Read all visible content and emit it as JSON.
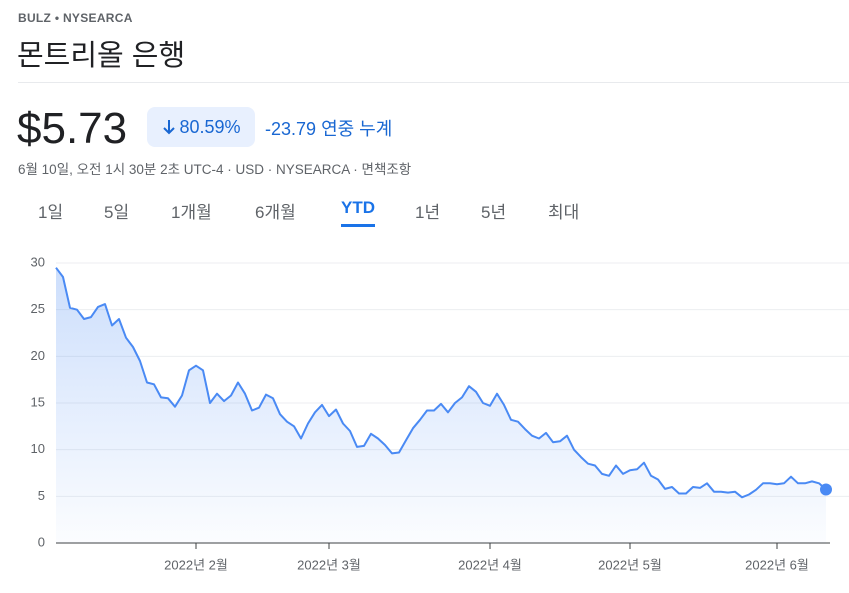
{
  "header": {
    "symbol": "BULZ • NYSEARCA",
    "name": "몬트리올 은행"
  },
  "quote": {
    "price": "$5.73",
    "change_percent": "80.59%",
    "change": "-23.79",
    "period": "연중 누계",
    "timestamp": "6월 10일, 오전 1시 30분 2초 UTC-4 · USD · NYSEARCA · 면책조항"
  },
  "tabs": [
    "1일",
    "5일",
    "1개월",
    "6개월",
    "YTD",
    "1년",
    "5년",
    "최대"
  ],
  "selected_tab": "YTD",
  "chart_data": {
    "type": "line",
    "color": "#4a8af4",
    "values": [
      29.5,
      28.5,
      25.2,
      25,
      24,
      24.2,
      25.3,
      25.6,
      23.3,
      24,
      22,
      21,
      19.5,
      17.2,
      17,
      15.6,
      15.5,
      14.6,
      15.8,
      18.5,
      19,
      18.5,
      15,
      16,
      15.2,
      15.8,
      17.2,
      16,
      14.2,
      14.5,
      15.9,
      15.5,
      13.8,
      13,
      12.5,
      11.2,
      12.8,
      14,
      14.8,
      13.6,
      14.3,
      12.8,
      12,
      10.3,
      10.4,
      11.7,
      11.2,
      10.5,
      9.6,
      9.7,
      11,
      12.3,
      13.2,
      14.2,
      14.2,
      14.9,
      14,
      15,
      15.6,
      16.8,
      16.2,
      15,
      14.7,
      16,
      14.8,
      13.2,
      13,
      12.2,
      11.5,
      11.2,
      11.8,
      10.8,
      10.9,
      11.5,
      10,
      9.2,
      8.5,
      8.3,
      7.4,
      7.2,
      8.3,
      7.4,
      7.8,
      7.9,
      8.6,
      7.2,
      6.8,
      5.8,
      6,
      5.3,
      5.3,
      6,
      5.9,
      6.4,
      5.5,
      5.5,
      5.4,
      5.5,
      4.9,
      5.2,
      5.7,
      6.4,
      6.4,
      6.3,
      6.4,
      7.1,
      6.4,
      6.4,
      6.6,
      6.4,
      5.73
    ],
    "xlim": [
      0,
      110
    ],
    "xticks": [
      {
        "value": 20,
        "label": "2022년 2월"
      },
      {
        "value": 39,
        "label": "2022년 3월"
      },
      {
        "value": 62,
        "label": "2022년 4월"
      },
      {
        "value": 82,
        "label": "2022년 5월"
      },
      {
        "value": 103,
        "label": "2022년 6월"
      }
    ],
    "ylim": [
      0,
      30
    ],
    "yticks": [
      0,
      5,
      10,
      15,
      20,
      25,
      30
    ],
    "grid": true
  }
}
